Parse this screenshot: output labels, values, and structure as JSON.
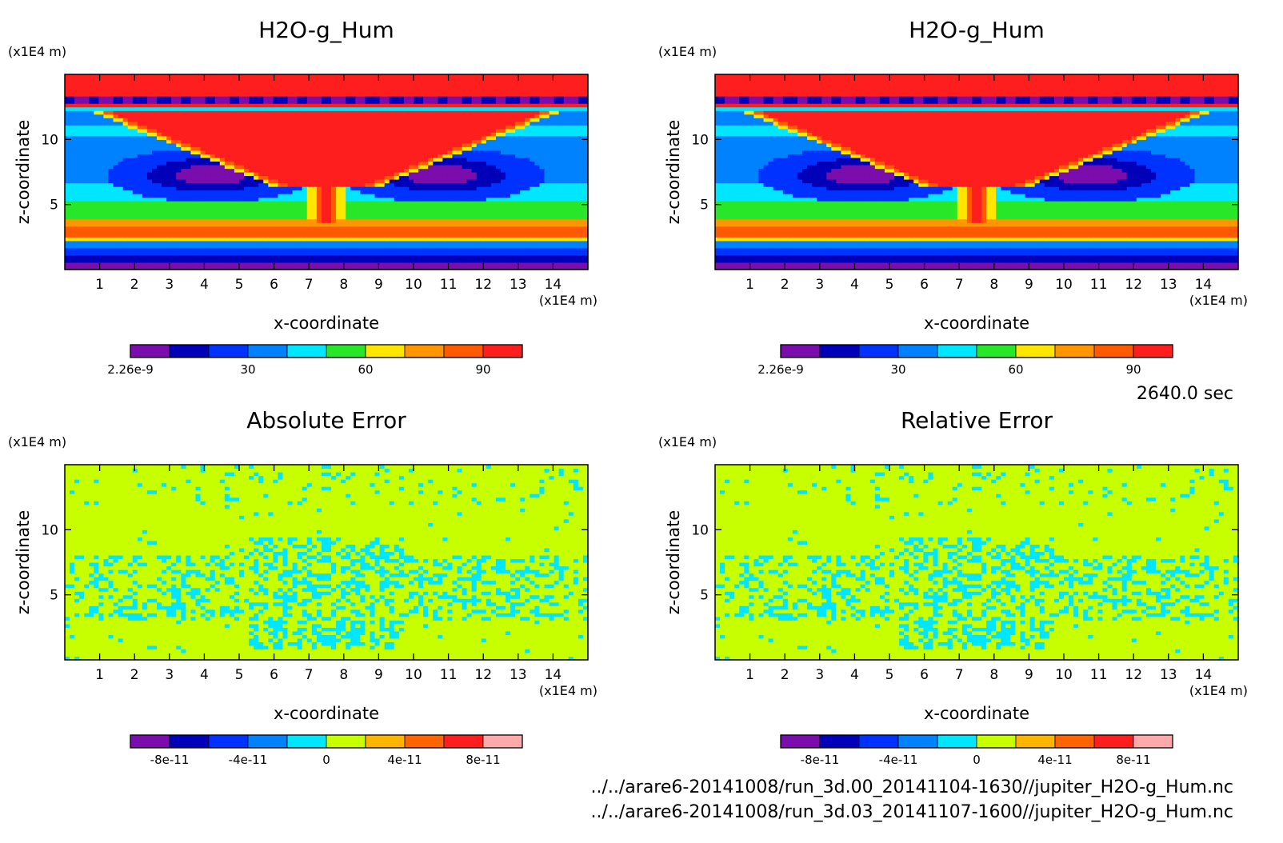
{
  "figure": {
    "time_label": "2640.0 sec",
    "file_paths": [
      "../../arare6-20141008/run_3d.00_20141104-1630//jupiter_H2O-g_Hum.nc",
      "../../arare6-20141008/run_3d.03_20141107-1600//jupiter_H2O-g_Hum.nc"
    ]
  },
  "chart_data": [
    {
      "type": "heatmap",
      "title": "H2O-g_Hum",
      "xlabel": "x-coordinate",
      "ylabel": "z-coordinate",
      "x_unit": "(x1E4 m)",
      "y_unit": "(x1E4 m)",
      "xlim": [
        0,
        15
      ],
      "ylim": [
        0,
        15
      ],
      "xticks": [
        1,
        2,
        3,
        4,
        5,
        6,
        7,
        8,
        9,
        10,
        11,
        12,
        13,
        14
      ],
      "yticks": [
        5,
        10
      ],
      "field": "humidity",
      "colorbar": {
        "colors": [
          "#7a0dab",
          "#0000b8",
          "#0032ff",
          "#0082ff",
          "#00e6ff",
          "#28e628",
          "#ffe600",
          "#ff9600",
          "#ff5a00",
          "#ff1e1e"
        ],
        "tick_labels": [
          "2.26e-9",
          "30",
          "60",
          "90"
        ],
        "tick_positions": [
          0,
          3,
          6,
          9
        ]
      }
    },
    {
      "type": "heatmap",
      "title": "H2O-g_Hum",
      "xlabel": "x-coordinate",
      "ylabel": "z-coordinate",
      "x_unit": "(x1E4 m)",
      "y_unit": "(x1E4 m)",
      "xlim": [
        0,
        15
      ],
      "ylim": [
        0,
        15
      ],
      "xticks": [
        1,
        2,
        3,
        4,
        5,
        6,
        7,
        8,
        9,
        10,
        11,
        12,
        13,
        14
      ],
      "yticks": [
        5,
        10
      ],
      "field": "humidity",
      "colorbar": {
        "colors": [
          "#7a0dab",
          "#0000b8",
          "#0032ff",
          "#0082ff",
          "#00e6ff",
          "#28e628",
          "#ffe600",
          "#ff9600",
          "#ff5a00",
          "#ff1e1e"
        ],
        "tick_labels": [
          "2.26e-9",
          "30",
          "60",
          "90"
        ],
        "tick_positions": [
          0,
          3,
          6,
          9
        ]
      }
    },
    {
      "type": "heatmap",
      "title": "Absolute Error",
      "xlabel": "x-coordinate",
      "ylabel": "z-coordinate",
      "x_unit": "(x1E4 m)",
      "y_unit": "(x1E4 m)",
      "xlim": [
        0,
        15
      ],
      "ylim": [
        0,
        15
      ],
      "xticks": [
        1,
        2,
        3,
        4,
        5,
        6,
        7,
        8,
        9,
        10,
        11,
        12,
        13,
        14
      ],
      "yticks": [
        5,
        10
      ],
      "field": "error",
      "colorbar": {
        "colors": [
          "#7a0dab",
          "#0000b8",
          "#0032ff",
          "#0082ff",
          "#00e6ff",
          "#c8ff00",
          "#ffb400",
          "#ff6400",
          "#ff1e1e",
          "#ffaaaa"
        ],
        "tick_labels": [
          "-8e-11",
          "-4e-11",
          "0",
          "4e-11",
          "8e-11"
        ],
        "tick_positions": [
          1,
          3,
          5,
          7,
          9
        ]
      }
    },
    {
      "type": "heatmap",
      "title": "Relative Error",
      "xlabel": "x-coordinate",
      "ylabel": "z-coordinate",
      "x_unit": "(x1E4 m)",
      "y_unit": "(x1E4 m)",
      "xlim": [
        0,
        15
      ],
      "ylim": [
        0,
        15
      ],
      "xticks": [
        1,
        2,
        3,
        4,
        5,
        6,
        7,
        8,
        9,
        10,
        11,
        12,
        13,
        14
      ],
      "yticks": [
        5,
        10
      ],
      "field": "error",
      "colorbar": {
        "colors": [
          "#7a0dab",
          "#0000b8",
          "#0032ff",
          "#0082ff",
          "#00e6ff",
          "#c8ff00",
          "#ffb400",
          "#ff6400",
          "#ff1e1e",
          "#ffaaaa"
        ],
        "tick_labels": [
          "-8e-11",
          "-4e-11",
          "0",
          "4e-11",
          "8e-11"
        ],
        "tick_positions": [
          1,
          3,
          5,
          7,
          9
        ]
      }
    }
  ]
}
